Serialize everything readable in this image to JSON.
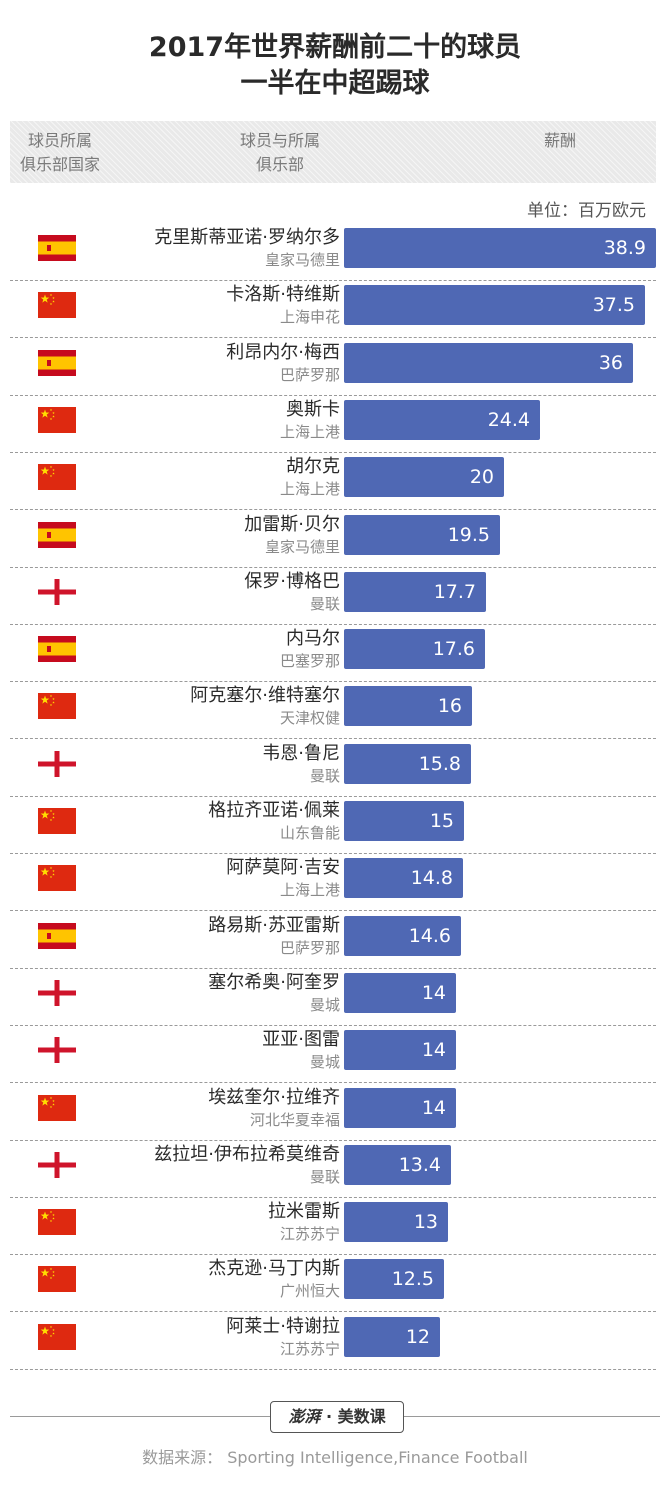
{
  "title": {
    "line1": "2017年世界薪酬前二十的球员",
    "line2": "一半在中超踢球"
  },
  "header": {
    "col1": "球员所属\n俱乐部国家",
    "col2": "球员与所属\n俱乐部",
    "col3": "薪酬"
  },
  "unit_label": "单位：百万欧元",
  "colors": {
    "bar": "#4f68b4",
    "spain_red": "#c60b1e",
    "spain_yellow": "#ffc400",
    "china_red": "#de2910",
    "china_star": "#ffde00",
    "england_red": "#cf142b"
  },
  "chart_data": {
    "type": "bar",
    "orientation": "horizontal",
    "title": "2017年世界薪酬前二十的球员一半在中超踢球",
    "unit": "百万欧元",
    "xlim": [
      0,
      38.9
    ],
    "rows": [
      {
        "flag": "spain",
        "name": "克里斯蒂亚诺·罗纳尔多",
        "club": "皇家马德里",
        "value": 38.9
      },
      {
        "flag": "china",
        "name": "卡洛斯·特维斯",
        "club": "上海申花",
        "value": 37.5
      },
      {
        "flag": "spain",
        "name": "利昂内尔·梅西",
        "club": "巴萨罗那",
        "value": 36
      },
      {
        "flag": "china",
        "name": "奥斯卡",
        "club": "上海上港",
        "value": 24.4
      },
      {
        "flag": "china",
        "name": "胡尔克",
        "club": "上海上港",
        "value": 20
      },
      {
        "flag": "spain",
        "name": "加雷斯·贝尔",
        "club": "皇家马德里",
        "value": 19.5
      },
      {
        "flag": "england",
        "name": "保罗·博格巴",
        "club": "曼联",
        "value": 17.7
      },
      {
        "flag": "spain",
        "name": "内马尔",
        "club": "巴塞罗那",
        "value": 17.6
      },
      {
        "flag": "china",
        "name": "阿克塞尔·维特塞尔",
        "club": "天津权健",
        "value": 16
      },
      {
        "flag": "england",
        "name": "韦恩·鲁尼",
        "club": "曼联",
        "value": 15.8
      },
      {
        "flag": "china",
        "name": "格拉齐亚诺·佩莱",
        "club": "山东鲁能",
        "value": 15
      },
      {
        "flag": "china",
        "name": "阿萨莫阿·吉安",
        "club": "上海上港",
        "value": 14.8
      },
      {
        "flag": "spain",
        "name": "路易斯·苏亚雷斯",
        "club": "巴萨罗那",
        "value": 14.6
      },
      {
        "flag": "england",
        "name": "塞尔希奥·阿奎罗",
        "club": "曼城",
        "value": 14
      },
      {
        "flag": "england",
        "name": "亚亚·图雷",
        "club": "曼城",
        "value": 14
      },
      {
        "flag": "china",
        "name": "埃兹奎尔·拉维齐",
        "club": "河北华夏幸福",
        "value": 14
      },
      {
        "flag": "england",
        "name": "兹拉坦·伊布拉希莫维奇",
        "club": "曼联",
        "value": 13.4
      },
      {
        "flag": "china",
        "name": "拉米雷斯",
        "club": "江苏苏宁",
        "value": 13
      },
      {
        "flag": "china",
        "name": "杰克逊·马丁内斯",
        "club": "广州恒大",
        "value": 12.5
      },
      {
        "flag": "china",
        "name": "阿莱士·特谢拉",
        "club": "江苏苏宁",
        "value": 12
      }
    ]
  },
  "footer": {
    "logo_text_a": "澎湃",
    "logo_text_b": "美数课",
    "source": "数据来源：  Sporting Intelligence,Finance Football"
  }
}
